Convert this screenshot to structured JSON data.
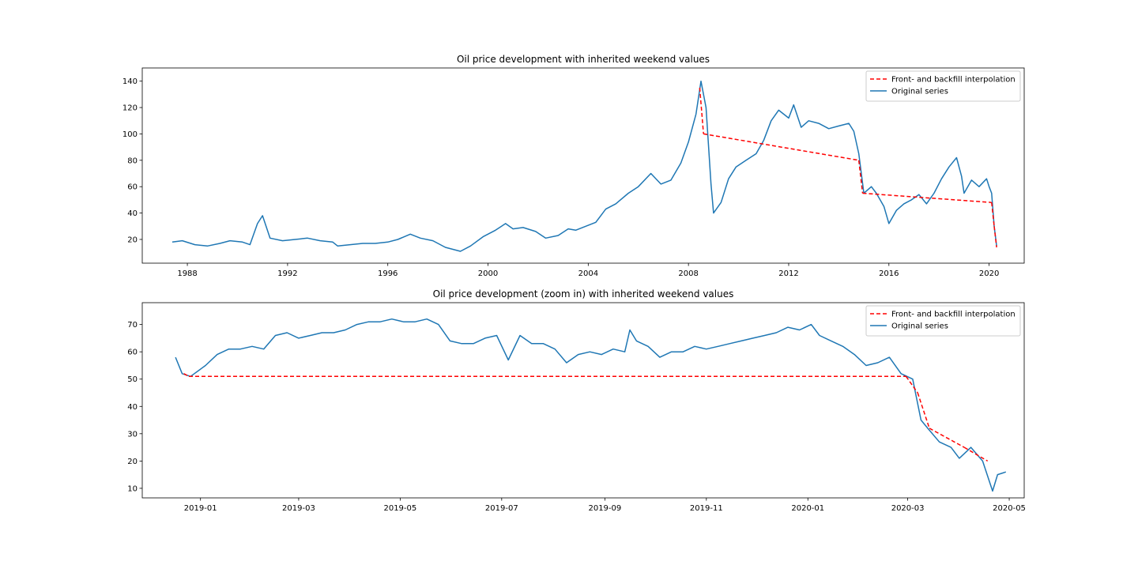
{
  "colors": {
    "original": "#1f77b4",
    "interp": "#ff0000",
    "frame": "#000000",
    "background": "#ffffff"
  },
  "chart_data": [
    {
      "type": "line",
      "title": "Oil price development with inherited weekend values",
      "xlabel": "",
      "ylabel": "",
      "x_type": "year",
      "xlim": [
        1986.2,
        2021.4
      ],
      "ylim": [
        2,
        150
      ],
      "xticks": [
        1988,
        1992,
        1996,
        2000,
        2004,
        2008,
        2012,
        2016,
        2020
      ],
      "xtick_labels": [
        "1988",
        "1992",
        "1996",
        "2000",
        "2004",
        "2008",
        "2012",
        "2016",
        "2020"
      ],
      "yticks": [
        20,
        40,
        60,
        80,
        100,
        120,
        140
      ],
      "ytick_labels": [
        "20",
        "40",
        "60",
        "80",
        "100",
        "120",
        "140"
      ],
      "grid": false,
      "legend": {
        "position": "top-right",
        "entries": [
          {
            "label": "Front- and backfill interpolation",
            "style": "dashed",
            "color": "#ff0000"
          },
          {
            "label": "Original series",
            "style": "solid",
            "color": "#1f77b4"
          }
        ]
      },
      "series": [
        {
          "name": "Original series",
          "x": [
            1987.4,
            1987.8,
            1988.3,
            1988.8,
            1989.3,
            1989.7,
            1990.2,
            1990.5,
            1990.8,
            1991.0,
            1991.3,
            1991.8,
            1992.3,
            1992.8,
            1993.3,
            1993.8,
            1994.0,
            1994.5,
            1995.0,
            1995.5,
            1996.0,
            1996.4,
            1996.9,
            1997.3,
            1997.8,
            1998.3,
            1998.9,
            1999.3,
            1999.8,
            2000.3,
            2000.7,
            2001.0,
            2001.4,
            2001.9,
            2002.3,
            2002.8,
            2003.2,
            2003.5,
            2003.9,
            2004.3,
            2004.7,
            2005.1,
            2005.6,
            2006.0,
            2006.5,
            2006.9,
            2007.3,
            2007.7,
            2008.0,
            2008.3,
            2008.5,
            2008.7,
            2008.9,
            2009.0,
            2009.3,
            2009.6,
            2009.9,
            2010.3,
            2010.7,
            2011.0,
            2011.3,
            2011.6,
            2012.0,
            2012.2,
            2012.5,
            2012.8,
            2013.2,
            2013.6,
            2014.0,
            2014.4,
            2014.6,
            2014.8,
            2015.0,
            2015.3,
            2015.5,
            2015.8,
            2016.0,
            2016.3,
            2016.6,
            2016.9,
            2017.2,
            2017.5,
            2017.8,
            2018.1,
            2018.4,
            2018.7,
            2018.9,
            2019.0,
            2019.3,
            2019.6,
            2019.9,
            2020.0,
            2020.1,
            2020.2,
            2020.3
          ],
          "y": [
            18,
            19,
            16,
            15,
            17,
            19,
            18,
            16,
            32,
            38,
            21,
            19,
            20,
            21,
            19,
            18,
            15,
            16,
            17,
            17,
            18,
            20,
            24,
            21,
            19,
            14,
            11,
            15,
            22,
            27,
            32,
            28,
            29,
            26,
            21,
            23,
            28,
            27,
            30,
            33,
            43,
            47,
            55,
            60,
            70,
            62,
            65,
            78,
            94,
            115,
            140,
            120,
            62,
            40,
            48,
            66,
            75,
            80,
            85,
            95,
            110,
            118,
            112,
            122,
            105,
            110,
            108,
            104,
            106,
            108,
            102,
            85,
            55,
            60,
            55,
            45,
            32,
            42,
            47,
            50,
            54,
            47,
            55,
            66,
            75,
            82,
            68,
            55,
            65,
            60,
            66,
            60,
            55,
            30,
            15
          ]
        },
        {
          "name": "Front- and backfill interpolation",
          "x": [
            2008.45,
            2008.6,
            2014.8,
            2014.95,
            2020.1,
            2020.2,
            2020.3
          ],
          "y": [
            135,
            100,
            80,
            55,
            48,
            30,
            14
          ]
        }
      ]
    },
    {
      "type": "line",
      "title": "Oil price development (zoom in) with inherited weekend values",
      "xlabel": "",
      "ylabel": "",
      "x_type": "date",
      "xlim": [
        "2018-11-27",
        "2020-05-10"
      ],
      "ylim": [
        6.5,
        78
      ],
      "xticks": [
        "2019-01-01",
        "2019-03-01",
        "2019-05-01",
        "2019-07-01",
        "2019-09-01",
        "2019-11-01",
        "2020-01-01",
        "2020-03-01",
        "2020-05-01"
      ],
      "xtick_labels": [
        "2019-01",
        "2019-03",
        "2019-05",
        "2019-07",
        "2019-09",
        "2019-11",
        "2020-01",
        "2020-03",
        "2020-05"
      ],
      "yticks": [
        10,
        20,
        30,
        40,
        50,
        60,
        70
      ],
      "ytick_labels": [
        "10",
        "20",
        "30",
        "40",
        "50",
        "60",
        "70"
      ],
      "grid": false,
      "legend": {
        "position": "top-right",
        "entries": [
          {
            "label": "Front- and backfill interpolation",
            "style": "dashed",
            "color": "#ff0000"
          },
          {
            "label": "Original series",
            "style": "solid",
            "color": "#1f77b4"
          }
        ]
      },
      "series": [
        {
          "name": "Original series",
          "x": [
            "2018-12-17",
            "2018-12-21",
            "2018-12-26",
            "2019-01-04",
            "2019-01-11",
            "2019-01-18",
            "2019-01-25",
            "2019-02-01",
            "2019-02-08",
            "2019-02-15",
            "2019-02-22",
            "2019-03-01",
            "2019-03-08",
            "2019-03-15",
            "2019-03-22",
            "2019-03-29",
            "2019-04-05",
            "2019-04-12",
            "2019-04-19",
            "2019-04-26",
            "2019-05-03",
            "2019-05-10",
            "2019-05-17",
            "2019-05-24",
            "2019-05-31",
            "2019-06-07",
            "2019-06-14",
            "2019-06-21",
            "2019-06-28",
            "2019-07-05",
            "2019-07-12",
            "2019-07-19",
            "2019-07-26",
            "2019-08-02",
            "2019-08-09",
            "2019-08-16",
            "2019-08-23",
            "2019-08-30",
            "2019-09-06",
            "2019-09-13",
            "2019-09-16",
            "2019-09-20",
            "2019-09-27",
            "2019-10-04",
            "2019-10-11",
            "2019-10-18",
            "2019-10-25",
            "2019-11-01",
            "2019-11-08",
            "2019-11-15",
            "2019-11-22",
            "2019-11-29",
            "2019-12-06",
            "2019-12-13",
            "2019-12-20",
            "2019-12-27",
            "2020-01-03",
            "2020-01-08",
            "2020-01-15",
            "2020-01-22",
            "2020-01-29",
            "2020-02-05",
            "2020-02-12",
            "2020-02-19",
            "2020-02-26",
            "2020-03-04",
            "2020-03-09",
            "2020-03-13",
            "2020-03-20",
            "2020-03-27",
            "2020-04-01",
            "2020-04-08",
            "2020-04-15",
            "2020-04-21",
            "2020-04-24",
            "2020-04-29"
          ],
          "y": [
            58,
            52,
            51,
            55,
            59,
            61,
            61,
            62,
            61,
            66,
            67,
            65,
            66,
            67,
            67,
            68,
            70,
            71,
            71,
            72,
            71,
            71,
            72,
            70,
            64,
            63,
            63,
            65,
            66,
            57,
            66,
            63,
            63,
            61,
            56,
            59,
            60,
            59,
            61,
            60,
            68,
            64,
            62,
            58,
            60,
            60,
            62,
            61,
            62,
            63,
            64,
            65,
            66,
            67,
            69,
            68,
            70,
            66,
            64,
            62,
            59,
            55,
            56,
            58,
            52,
            50,
            35,
            32,
            27,
            25,
            21,
            25,
            20,
            9,
            15,
            16
          ]
        },
        {
          "name": "Front- and backfill interpolation",
          "x": [
            "2018-12-22",
            "2018-12-25",
            "2020-02-29",
            "2020-03-07",
            "2020-03-14",
            "2020-04-04",
            "2020-04-18"
          ],
          "y": [
            52,
            51,
            51,
            45,
            32,
            25,
            20
          ]
        }
      ]
    }
  ]
}
